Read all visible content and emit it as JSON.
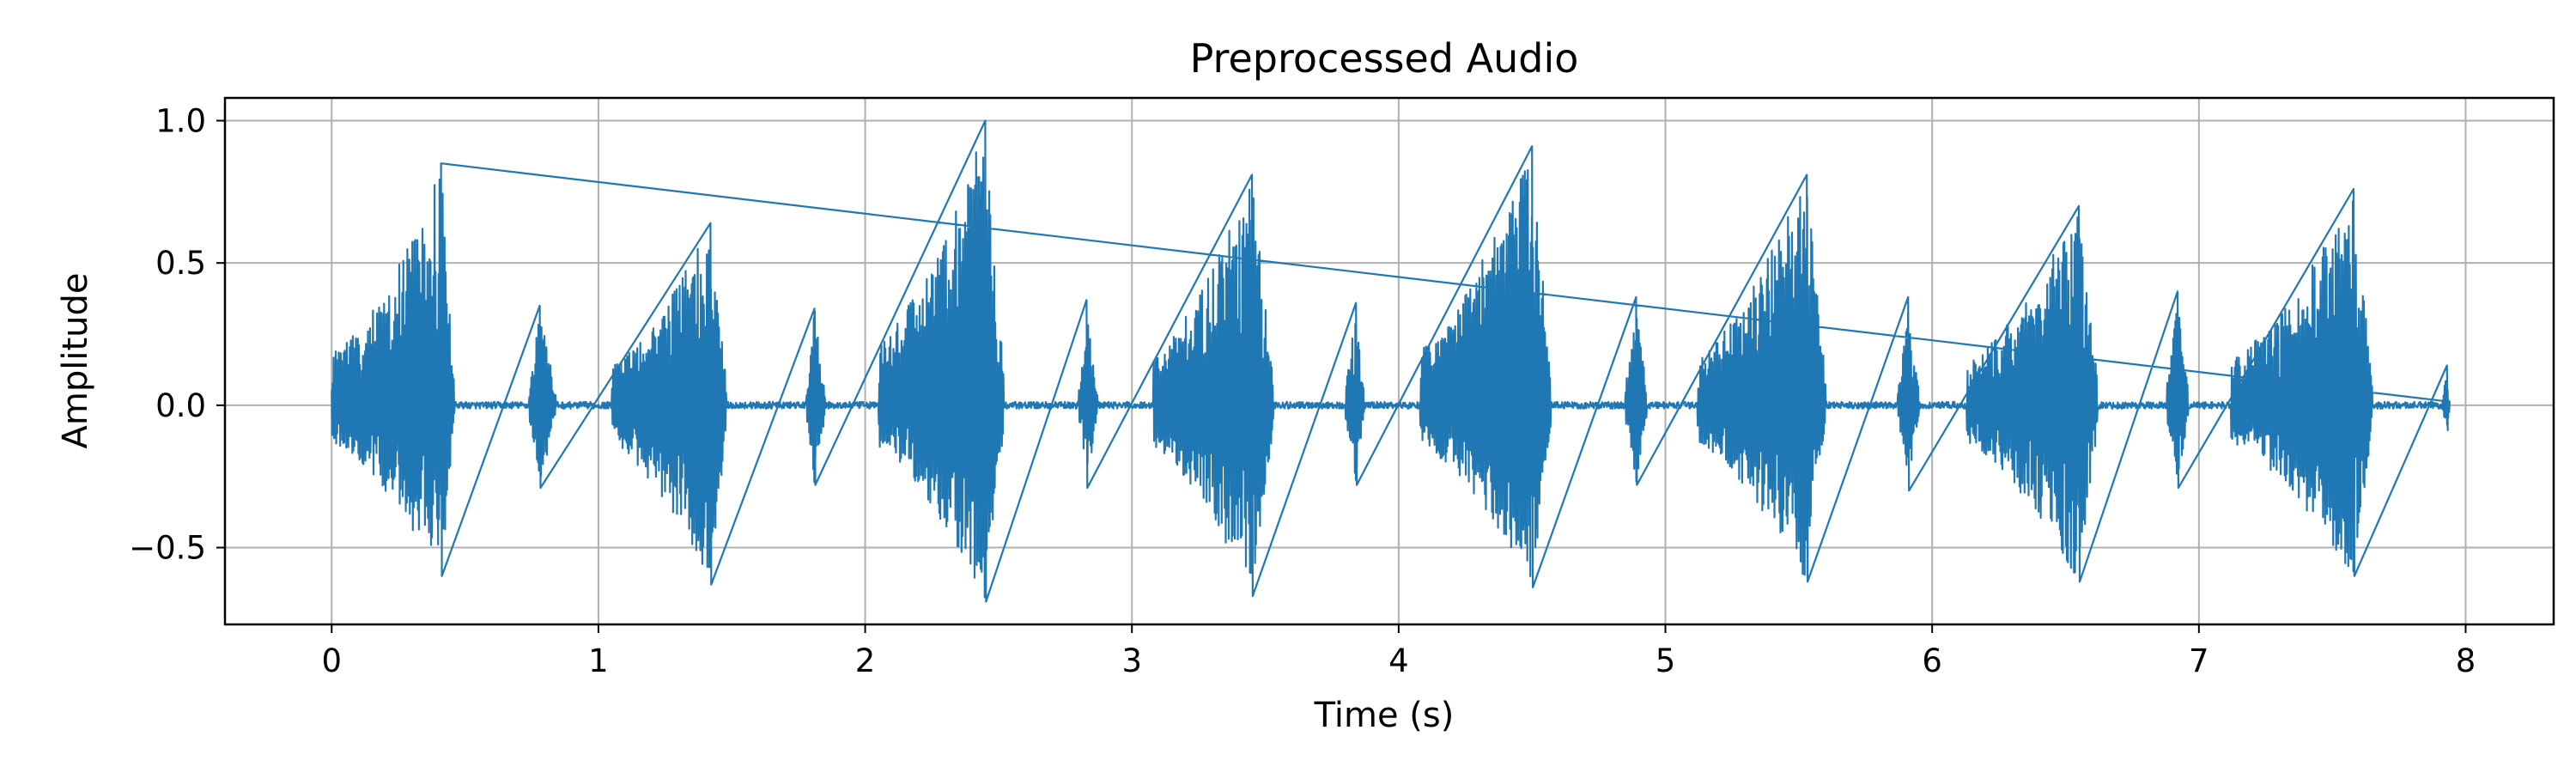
{
  "chart_data": {
    "type": "line",
    "title": "Preprocessed Audio",
    "xlabel": "Time (s)",
    "ylabel": "Amplitude",
    "xlim": [
      -0.4,
      8.33
    ],
    "ylim": [
      -0.77,
      1.08
    ],
    "x_ticks": [
      0,
      1,
      2,
      3,
      4,
      5,
      6,
      7,
      8
    ],
    "x_tick_labels": [
      "0",
      "1",
      "2",
      "3",
      "4",
      "5",
      "6",
      "7",
      "8"
    ],
    "y_ticks": [
      -0.5,
      0.0,
      0.5,
      1.0
    ],
    "y_tick_labels": [
      "−0.5",
      "0.0",
      "0.5",
      "1.0"
    ],
    "grid": true,
    "series": [
      {
        "color": "#1f77b4",
        "duration": 7.94,
        "noise_level": 0.012,
        "bursts": [
          {
            "start": 0.0,
            "end": 0.46,
            "peak_time": 0.41,
            "pos_peak": 0.85,
            "neg_peak": -0.6
          },
          {
            "start": 0.74,
            "end": 0.84,
            "peak_time": 0.78,
            "pos_peak": 0.35,
            "neg_peak": -0.29
          },
          {
            "start": 1.05,
            "end": 1.48,
            "peak_time": 1.42,
            "pos_peak": 0.64,
            "neg_peak": -0.63
          },
          {
            "start": 1.78,
            "end": 1.85,
            "peak_time": 1.81,
            "pos_peak": 0.34,
            "neg_peak": -0.28
          },
          {
            "start": 2.05,
            "end": 2.52,
            "peak_time": 2.45,
            "pos_peak": 1.0,
            "neg_peak": -0.69
          },
          {
            "start": 2.8,
            "end": 2.87,
            "peak_time": 2.83,
            "pos_peak": 0.37,
            "neg_peak": -0.29
          },
          {
            "start": 3.08,
            "end": 3.53,
            "peak_time": 3.45,
            "pos_peak": 0.81,
            "neg_peak": -0.67
          },
          {
            "start": 3.8,
            "end": 3.87,
            "peak_time": 3.84,
            "pos_peak": 0.36,
            "neg_peak": -0.28
          },
          {
            "start": 4.08,
            "end": 4.57,
            "peak_time": 4.5,
            "pos_peak": 0.91,
            "neg_peak": -0.64
          },
          {
            "start": 4.85,
            "end": 4.93,
            "peak_time": 4.89,
            "pos_peak": 0.38,
            "neg_peak": -0.28
          },
          {
            "start": 5.12,
            "end": 5.6,
            "peak_time": 5.53,
            "pos_peak": 0.81,
            "neg_peak": -0.62
          },
          {
            "start": 5.87,
            "end": 5.95,
            "peak_time": 5.91,
            "pos_peak": 0.38,
            "neg_peak": -0.3
          },
          {
            "start": 6.13,
            "end": 6.62,
            "peak_time": 6.55,
            "pos_peak": 0.7,
            "neg_peak": -0.62
          },
          {
            "start": 6.88,
            "end": 6.96,
            "peak_time": 6.92,
            "pos_peak": 0.4,
            "neg_peak": -0.29
          },
          {
            "start": 7.12,
            "end": 7.65,
            "peak_time": 7.58,
            "pos_peak": 0.76,
            "neg_peak": -0.6
          },
          {
            "start": 7.91,
            "end": 7.94,
            "peak_time": 7.93,
            "pos_peak": 0.14,
            "neg_peak": -0.09
          }
        ]
      }
    ]
  }
}
